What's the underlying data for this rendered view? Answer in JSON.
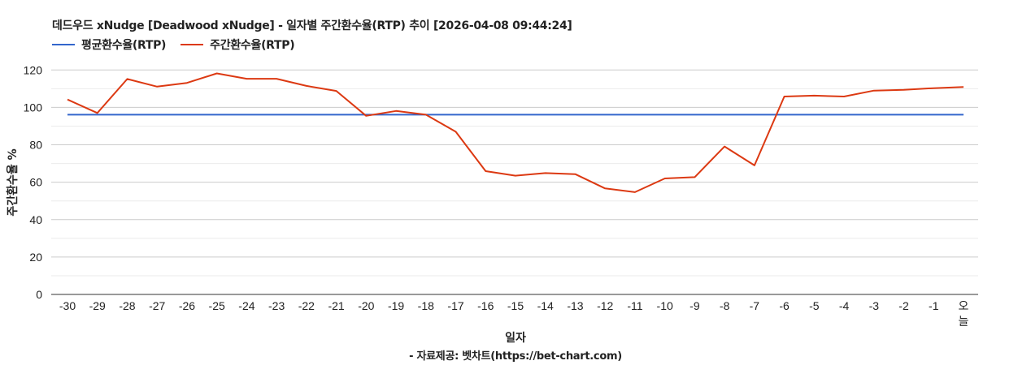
{
  "header": {
    "title": "데드우드 xNudge [Deadwood xNudge] - 일자별 주간환수율(RTP) 추이 [2026-04-08 09:44:24]"
  },
  "legend": {
    "items": [
      {
        "label": "평균환수율(RTP)",
        "color": "#3366cc"
      },
      {
        "label": "주간환수율(RTP)",
        "color": "#dc3912"
      }
    ]
  },
  "axes": {
    "x_title": "일자",
    "y_title": "주간환수율 %"
  },
  "footer": {
    "source": "- 자료제공: 벳차트(https://bet-chart.com)"
  },
  "colors": {
    "average": "#3366cc",
    "weekly": "#dc3912",
    "gridline_major": "#cccccc",
    "gridline_minor": "#ebebeb",
    "baseline": "#333333"
  },
  "chart_data": {
    "type": "line",
    "title": "데드우드 xNudge [Deadwood xNudge] - 일자별 주간환수율(RTP) 추이 [2026-04-08 09:44:24]",
    "xlabel": "일자",
    "ylabel": "주간환수율 %",
    "ylim": [
      0,
      120
    ],
    "yticks": [
      0,
      20,
      40,
      60,
      80,
      100,
      120
    ],
    "grid": true,
    "legend_position": "top",
    "categories": [
      "-30",
      "-29",
      "-28",
      "-27",
      "-26",
      "-25",
      "-24",
      "-23",
      "-22",
      "-21",
      "-20",
      "-19",
      "-18",
      "-17",
      "-16",
      "-15",
      "-14",
      "-13",
      "-12",
      "-11",
      "-10",
      "-9",
      "-8",
      "-7",
      "-6",
      "-5",
      "-4",
      "-3",
      "-2",
      "-1",
      "오늘"
    ],
    "series": [
      {
        "name": "평균환수율(RTP)",
        "color": "#3366cc",
        "values": [
          96.1,
          96.1,
          96.1,
          96.1,
          96.1,
          96.1,
          96.1,
          96.1,
          96.1,
          96.1,
          96.1,
          96.1,
          96.1,
          96.1,
          96.1,
          96.1,
          96.1,
          96.1,
          96.1,
          96.1,
          96.1,
          96.1,
          96.1,
          96.1,
          96.1,
          96.1,
          96.1,
          96.1,
          96.1,
          96.1,
          96.1
        ]
      },
      {
        "name": "주간환수율(RTP)",
        "color": "#dc3912",
        "values": [
          104.2,
          97.0,
          115.2,
          111.1,
          113.1,
          118.2,
          115.3,
          115.3,
          111.5,
          108.8,
          95.5,
          98.1,
          96.1,
          87.0,
          65.9,
          63.5,
          64.9,
          64.3,
          56.7,
          54.7,
          62.0,
          62.7,
          79.1,
          69.0,
          105.8,
          106.3,
          105.8,
          109.0,
          109.4,
          110.3,
          110.9
        ]
      }
    ]
  }
}
